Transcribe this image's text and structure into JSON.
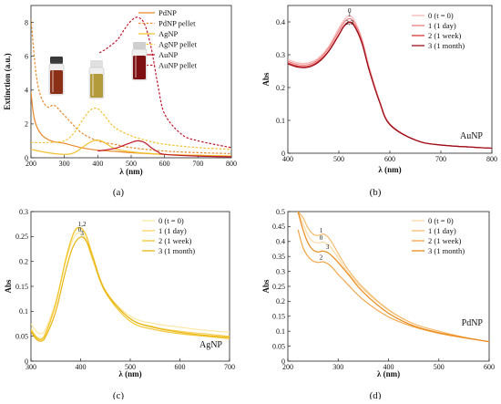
{
  "chart_data": [
    {
      "id": "a",
      "type": "line",
      "caption": "(a)",
      "xlabel": "λ (nm)",
      "ylabel": "Extinction (a.u.)",
      "xlim": [
        200,
        800
      ],
      "ylim": [
        0,
        9
      ],
      "xticks": [
        200,
        300,
        400,
        500,
        600,
        700,
        800
      ],
      "yticks": [
        0,
        2,
        4,
        6,
        8
      ],
      "grid": false,
      "legend": "top-right",
      "series": [
        {
          "name": "PdNP",
          "color": "#e8892b",
          "dash": false,
          "x": [
            200,
            210,
            230,
            260,
            300,
            350,
            400,
            450,
            500,
            600,
            700,
            800
          ],
          "y": [
            3.9,
            2.3,
            1.4,
            1.0,
            0.85,
            0.6,
            0.45,
            0.38,
            0.3,
            0.2,
            0.14,
            0.1
          ]
        },
        {
          "name": "PdNP pellet",
          "color": "#e8892b",
          "dash": true,
          "x": [
            200,
            215,
            230,
            250,
            270,
            300,
            350,
            400,
            450,
            500,
            600,
            700,
            800
          ],
          "y": [
            8.2,
            5.0,
            3.6,
            3.0,
            3.1,
            2.5,
            1.5,
            1.0,
            0.8,
            0.6,
            0.4,
            0.3,
            0.25
          ]
        },
        {
          "name": "AgNP",
          "color": "#f2c12e",
          "dash": false,
          "x": [
            200,
            250,
            300,
            330,
            360,
            380,
            400,
            420,
            450,
            500,
            600,
            700,
            800
          ],
          "y": [
            0.5,
            0.3,
            0.2,
            0.3,
            0.7,
            0.95,
            1.05,
            0.9,
            0.55,
            0.35,
            0.2,
            0.15,
            0.1
          ]
        },
        {
          "name": "AgNP pellet",
          "color": "#f2c12e",
          "dash": true,
          "x": [
            200,
            250,
            300,
            330,
            360,
            380,
            400,
            420,
            450,
            500,
            550,
            600,
            700,
            800
          ],
          "y": [
            0.9,
            0.9,
            1.0,
            1.5,
            2.4,
            2.85,
            2.9,
            2.5,
            1.8,
            1.3,
            1.0,
            0.8,
            0.6,
            0.5
          ]
        },
        {
          "name": "AuNP",
          "color": "#c0182b",
          "dash": false,
          "x": [
            400,
            450,
            480,
            500,
            520,
            540,
            560,
            580,
            600,
            700,
            800
          ],
          "y": [
            0.4,
            0.55,
            0.75,
            0.9,
            1.0,
            0.9,
            0.6,
            0.35,
            0.2,
            0.1,
            0.06
          ]
        },
        {
          "name": "AuNP pellet",
          "color": "#c0182b",
          "dash": true,
          "x": [
            405,
            430,
            460,
            480,
            500,
            520,
            540,
            560,
            580,
            600,
            650,
            700,
            800
          ],
          "y": [
            6.2,
            6.5,
            7.0,
            7.6,
            8.1,
            8.3,
            7.9,
            6.5,
            4.3,
            2.6,
            1.4,
            1.0,
            0.6
          ]
        }
      ]
    },
    {
      "id": "b",
      "type": "line",
      "caption": "(b)",
      "xlabel": "λ (nm)",
      "ylabel": "Abs",
      "inset_label": "AuNP",
      "xlim": [
        400,
        800
      ],
      "ylim": [
        0,
        0.45
      ],
      "xticks": [
        400,
        500,
        600,
        700,
        800
      ],
      "yticks": [
        0,
        0.1,
        0.2,
        0.3,
        0.4
      ],
      "grid": false,
      "legend": "top-right",
      "peak_labels": [
        {
          "text": "0",
          "x": 521,
          "y": 0.428
        },
        {
          "text": "1",
          "x": 521,
          "y": 0.417
        },
        {
          "text": "2,3",
          "x": 521,
          "y": 0.392
        }
      ],
      "series": [
        {
          "name": "0 (t = 0)",
          "color": "#f6b6b6",
          "x": [
            400,
            420,
            440,
            460,
            480,
            500,
            510,
            520,
            530,
            545,
            560,
            580,
            600,
            650,
            700,
            800
          ],
          "y": [
            0.285,
            0.275,
            0.275,
            0.29,
            0.325,
            0.38,
            0.405,
            0.418,
            0.405,
            0.35,
            0.26,
            0.16,
            0.09,
            0.04,
            0.025,
            0.015
          ]
        },
        {
          "name": "1 (1 day)",
          "color": "#ec8080",
          "x": [
            400,
            420,
            440,
            460,
            480,
            500,
            510,
            520,
            530,
            545,
            560,
            580,
            600,
            650,
            700,
            800
          ],
          "y": [
            0.28,
            0.27,
            0.27,
            0.285,
            0.32,
            0.372,
            0.398,
            0.41,
            0.398,
            0.345,
            0.255,
            0.158,
            0.088,
            0.04,
            0.025,
            0.015
          ]
        },
        {
          "name": "2 (1 week)",
          "color": "#dc3a3a",
          "x": [
            400,
            420,
            440,
            460,
            480,
            500,
            510,
            520,
            530,
            545,
            560,
            580,
            600,
            650,
            700,
            800
          ],
          "y": [
            0.275,
            0.265,
            0.265,
            0.28,
            0.312,
            0.362,
            0.388,
            0.4,
            0.39,
            0.338,
            0.25,
            0.155,
            0.087,
            0.04,
            0.025,
            0.015
          ]
        },
        {
          "name": "3 (1 month)",
          "color": "#9a0f1c",
          "x": [
            400,
            420,
            440,
            460,
            480,
            500,
            510,
            520,
            530,
            545,
            560,
            580,
            600,
            650,
            700,
            800
          ],
          "y": [
            0.272,
            0.262,
            0.262,
            0.277,
            0.31,
            0.36,
            0.386,
            0.398,
            0.388,
            0.336,
            0.25,
            0.155,
            0.087,
            0.04,
            0.025,
            0.015
          ]
        }
      ]
    },
    {
      "id": "c",
      "type": "line",
      "caption": "(c)",
      "xlabel": "λ (nm)",
      "ylabel": "Abs",
      "inset_label": "AgNP",
      "xlim": [
        300,
        700
      ],
      "ylim": [
        0,
        0.3
      ],
      "xticks": [
        300,
        400,
        500,
        600,
        700
      ],
      "yticks": [
        0,
        0.05,
        0.1,
        0.15,
        0.2,
        0.25,
        0.3
      ],
      "grid": false,
      "legend": "top-right",
      "peak_labels": [
        {
          "text": "1,2",
          "x": 403,
          "y": 0.271
        },
        {
          "text": "0",
          "x": 398,
          "y": 0.26
        },
        {
          "text": "3",
          "x": 403,
          "y": 0.252
        }
      ],
      "series": [
        {
          "name": "0 (t = 0)",
          "color": "#fbe7a4",
          "x": [
            300,
            310,
            320,
            330,
            350,
            370,
            385,
            397,
            410,
            425,
            450,
            500,
            550,
            600,
            650,
            700
          ],
          "y": [
            0.075,
            0.06,
            0.055,
            0.065,
            0.12,
            0.2,
            0.245,
            0.258,
            0.245,
            0.2,
            0.14,
            0.09,
            0.075,
            0.068,
            0.062,
            0.058
          ]
        },
        {
          "name": "1 (1 day)",
          "color": "#f8d35d",
          "x": [
            300,
            310,
            320,
            330,
            350,
            370,
            385,
            397,
            410,
            425,
            450,
            500,
            550,
            600,
            650,
            700
          ],
          "y": [
            0.065,
            0.05,
            0.045,
            0.058,
            0.118,
            0.205,
            0.255,
            0.268,
            0.255,
            0.21,
            0.142,
            0.085,
            0.068,
            0.06,
            0.055,
            0.05
          ]
        },
        {
          "name": "2 (1 week)",
          "color": "#f4c630",
          "x": [
            300,
            310,
            320,
            330,
            350,
            370,
            385,
            397,
            410,
            425,
            450,
            500,
            550,
            600,
            650,
            700
          ],
          "y": [
            0.062,
            0.048,
            0.043,
            0.056,
            0.115,
            0.203,
            0.254,
            0.268,
            0.254,
            0.208,
            0.138,
            0.08,
            0.063,
            0.055,
            0.05,
            0.045
          ]
        },
        {
          "name": "3 (1 month)",
          "color": "#e9b40f",
          "x": [
            300,
            310,
            320,
            330,
            350,
            370,
            385,
            400,
            412,
            425,
            450,
            500,
            550,
            600,
            650,
            700
          ],
          "y": [
            0.06,
            0.045,
            0.04,
            0.05,
            0.1,
            0.182,
            0.23,
            0.249,
            0.24,
            0.205,
            0.14,
            0.085,
            0.067,
            0.058,
            0.052,
            0.048
          ]
        }
      ]
    },
    {
      "id": "d",
      "type": "line",
      "caption": "(d)",
      "xlabel": "λ (nm)",
      "ylabel": "Abs",
      "inset_label": "PdNP",
      "xlim": [
        200,
        600
      ],
      "ylim": [
        0,
        0.5
      ],
      "xticks": [
        200,
        300,
        400,
        500,
        600
      ],
      "yticks": [
        0,
        0.05,
        0.1,
        0.15,
        0.2,
        0.25,
        0.3,
        0.35,
        0.4,
        0.45,
        0.5
      ],
      "grid": false,
      "legend": "top-right",
      "peak_labels": [
        {
          "text": "1",
          "x": 266,
          "y": 0.43
        },
        {
          "text": "0",
          "x": 266,
          "y": 0.405
        },
        {
          "text": "3",
          "x": 279,
          "y": 0.375
        },
        {
          "text": "2",
          "x": 266,
          "y": 0.34
        }
      ],
      "series": [
        {
          "name": "0 (t = 0)",
          "color": "#fbd9a8",
          "x": [
            220,
            230,
            240,
            250,
            260,
            270,
            280,
            290,
            300,
            320,
            350,
            400,
            450,
            500,
            550,
            600
          ],
          "y": [
            0.5,
            0.46,
            0.42,
            0.4,
            0.395,
            0.398,
            0.39,
            0.37,
            0.345,
            0.295,
            0.24,
            0.17,
            0.125,
            0.1,
            0.08,
            0.065
          ]
        },
        {
          "name": "1 (1 day)",
          "color": "#f6b96c",
          "x": [
            220,
            230,
            240,
            250,
            260,
            270,
            280,
            290,
            300,
            320,
            350,
            400,
            450,
            500,
            550,
            600
          ],
          "y": [
            0.5,
            0.48,
            0.445,
            0.425,
            0.42,
            0.425,
            0.415,
            0.39,
            0.36,
            0.305,
            0.245,
            0.172,
            0.125,
            0.1,
            0.08,
            0.065
          ]
        },
        {
          "name": "2 (1 week)",
          "color": "#f2a548",
          "x": [
            220,
            230,
            240,
            250,
            260,
            270,
            280,
            290,
            300,
            320,
            350,
            400,
            450,
            500,
            550,
            600
          ],
          "y": [
            0.44,
            0.38,
            0.35,
            0.335,
            0.33,
            0.332,
            0.325,
            0.31,
            0.29,
            0.255,
            0.205,
            0.148,
            0.115,
            0.093,
            0.078,
            0.065
          ]
        },
        {
          "name": "3 (1 month)",
          "color": "#ea8a1b",
          "x": [
            220,
            230,
            240,
            250,
            260,
            270,
            280,
            290,
            300,
            320,
            350,
            400,
            450,
            500,
            550,
            600
          ],
          "y": [
            0.5,
            0.44,
            0.395,
            0.372,
            0.365,
            0.368,
            0.362,
            0.348,
            0.33,
            0.29,
            0.23,
            0.16,
            0.118,
            0.095,
            0.079,
            0.065
          ]
        }
      ]
    }
  ]
}
